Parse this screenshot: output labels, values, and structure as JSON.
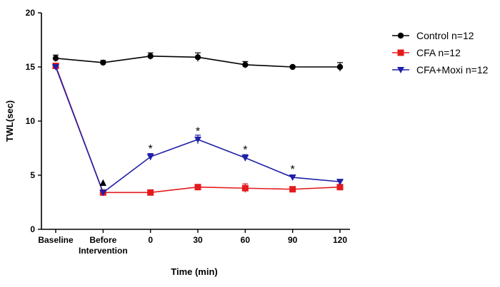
{
  "chart_data": {
    "type": "line",
    "title": "",
    "xlabel": "Time (min)",
    "ylabel": "TWL(sec)",
    "ylim": [
      0,
      20
    ],
    "yticks": [
      "0",
      "5",
      "10",
      "15",
      "20"
    ],
    "categories": [
      "Baseline",
      "Before\nIntervention",
      "0",
      "30",
      "60",
      "90",
      "120"
    ],
    "series": [
      {
        "name": "Control n=12",
        "color": "#000000",
        "marker": "circle",
        "values": [
          15.8,
          15.4,
          16.0,
          15.9,
          15.2,
          15.0,
          15.0
        ],
        "errors": [
          0.3,
          0.2,
          0.3,
          0.4,
          0.3,
          0.1,
          0.4
        ]
      },
      {
        "name": "CFA n=12",
        "color": "#e41a1c",
        "marker": "square",
        "values": [
          15.1,
          3.4,
          3.4,
          3.9,
          3.8,
          3.7,
          3.9
        ],
        "errors": [
          0.2,
          0.2,
          0.2,
          0.2,
          0.4,
          0.2,
          0.2
        ]
      },
      {
        "name": "CFA+Moxi n=12",
        "color": "#1f1fa8",
        "marker": "triangle-down",
        "values": [
          15.0,
          3.4,
          6.7,
          8.3,
          6.6,
          4.8,
          4.4
        ],
        "errors": [
          0.2,
          0.2,
          0.3,
          0.4,
          0.3,
          0.2,
          0.1
        ]
      }
    ],
    "annotations": [
      {
        "label": "▲",
        "category": 1,
        "y": 4.4
      },
      {
        "label": "*",
        "category": 2,
        "y": 7.5
      },
      {
        "label": "*",
        "category": 3,
        "y": 9.1
      },
      {
        "label": "*",
        "category": 4,
        "y": 7.4
      },
      {
        "label": "*",
        "category": 5,
        "y": 5.6
      }
    ],
    "legend": "right"
  }
}
